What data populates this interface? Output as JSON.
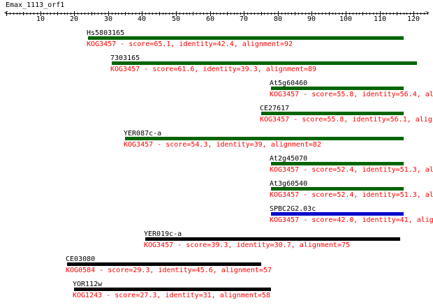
{
  "title": "Emax_1113_orf1",
  "axis": {
    "ticks": [
      10,
      20,
      30,
      40,
      50,
      60,
      70,
      80,
      90,
      100,
      110,
      120
    ]
  },
  "colors": {
    "green": "#006400",
    "blue": "#0000cc",
    "black": "#000000",
    "label": "#ff0000"
  },
  "hits": [
    {
      "name": "Hs5803165",
      "start": 24,
      "end": 117,
      "color": "green",
      "desc": "KOG3457 - score=65.1, identity=42.4, alignment=92"
    },
    {
      "name": "7303165",
      "start": 31,
      "end": 121,
      "color": "green",
      "desc": "KOG3457 - score=61.6, identity=39.3, alignment=89"
    },
    {
      "name": "At5g60460",
      "start": 78,
      "end": 117,
      "color": "green",
      "desc": "KOG3457 - score=55.8, identity=56.4, al"
    },
    {
      "name": "CE27617",
      "start": 75,
      "end": 117,
      "color": "green",
      "desc": "KOG3457 - score=55.8, identity=56.1, alig"
    },
    {
      "name": "YER087c-a",
      "start": 35,
      "end": 117,
      "color": "green",
      "desc": "KOG3457 - score=54.3, identity=39, alignment=82"
    },
    {
      "name": "At2g45070",
      "start": 78,
      "end": 117,
      "color": "green",
      "desc": "KOG3457 - score=52.4, identity=51.3, al"
    },
    {
      "name": "At3g60540",
      "start": 78,
      "end": 117,
      "color": "green",
      "desc": "KOG3457 - score=52.4, identity=51.3, al"
    },
    {
      "name": "SPBC2G2.03c",
      "start": 78,
      "end": 117,
      "color": "blue",
      "desc": "KOG3457 - score=42.0, identity=41, alig"
    },
    {
      "name": "YER019c-a",
      "start": 41,
      "end": 116,
      "color": "black",
      "desc": "KOG3457 - score=39.3, identity=30.7, alignment=75"
    },
    {
      "name": "CE03080",
      "start": 18,
      "end": 75,
      "color": "black",
      "desc": "KOG0584 - score=29.3, identity=45.6, alignment=57"
    },
    {
      "name": "YOR112w",
      "start": 20,
      "end": 78,
      "color": "black",
      "desc": "KOG1243 - score=27.3, identity=31, alignment=58"
    }
  ]
}
